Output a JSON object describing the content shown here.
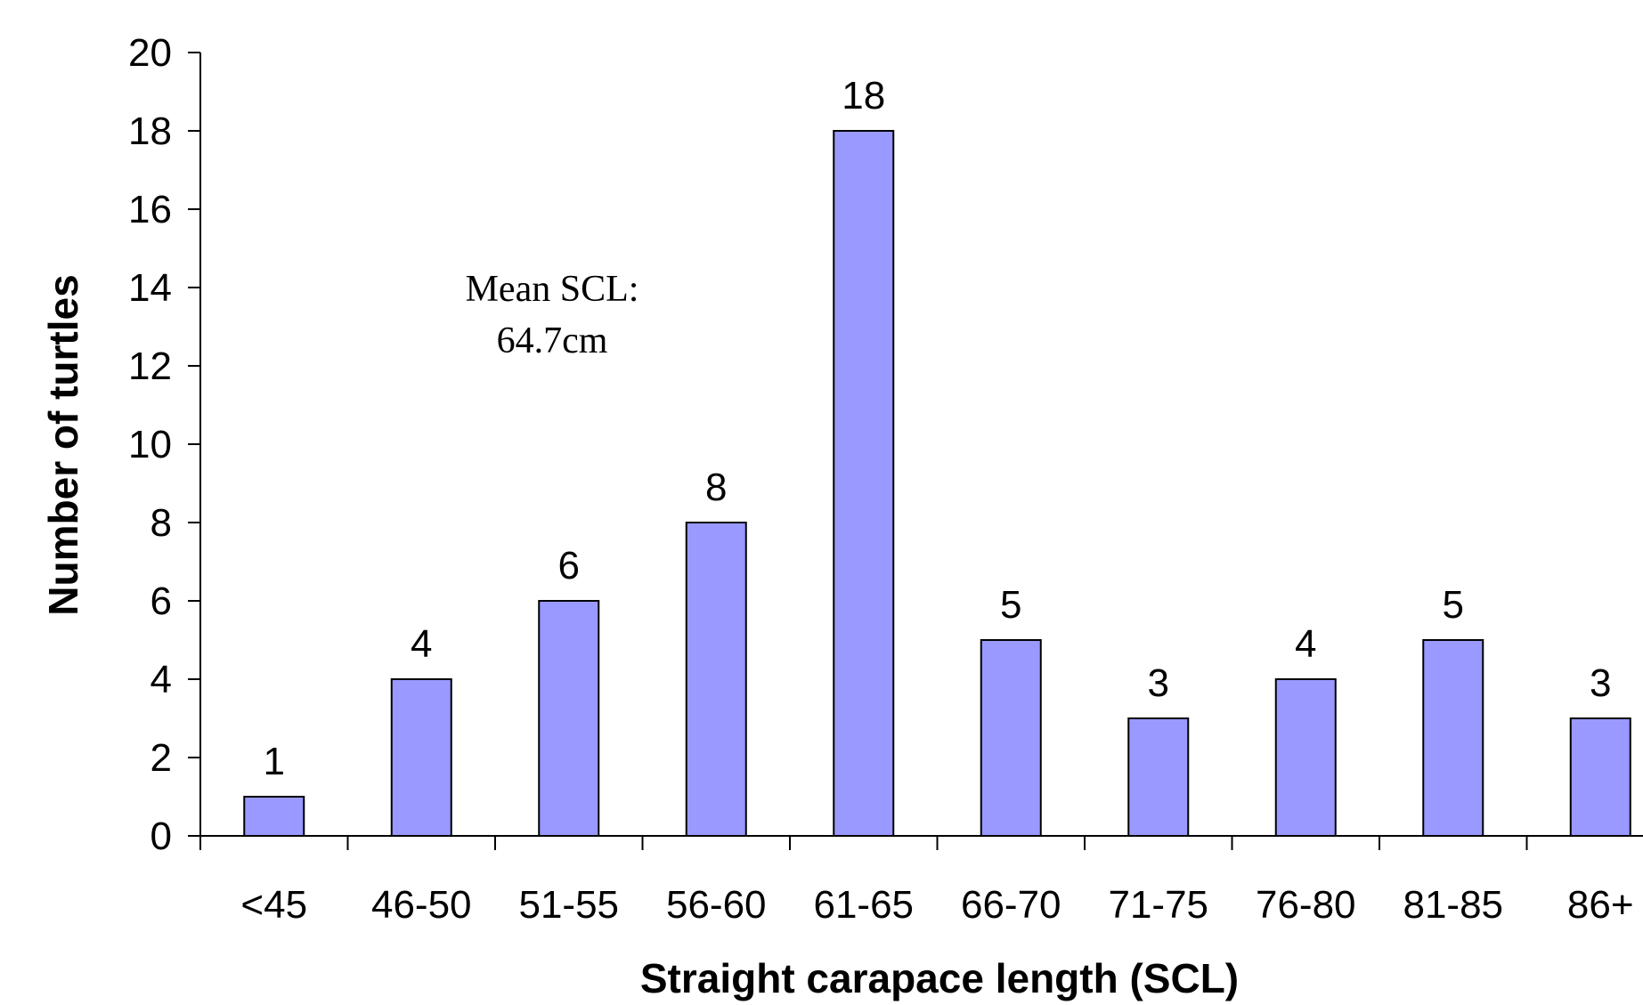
{
  "chart_data": {
    "type": "bar",
    "categories": [
      "<45",
      "46-50",
      "51-55",
      "56-60",
      "61-65",
      "66-70",
      "71-75",
      "76-80",
      "81-85",
      "86+"
    ],
    "values": [
      1,
      4,
      6,
      8,
      18,
      5,
      3,
      4,
      5,
      3
    ],
    "data_labels": [
      "1",
      "4",
      "6",
      "8",
      "18",
      "5",
      "3",
      "4",
      "5",
      "3"
    ],
    "xlabel": "Straight carapace length (SCL)",
    "ylabel": "Number of turtles",
    "ylim": [
      0,
      20
    ],
    "yticks": [
      "0",
      "2",
      "4",
      "6",
      "8",
      "10",
      "12",
      "14",
      "16",
      "18",
      "20"
    ],
    "annotation": {
      "line1": "Mean SCL:",
      "line2": "64.7cm"
    },
    "bar_color": "#9999FF",
    "grid": false,
    "legend": "none"
  }
}
